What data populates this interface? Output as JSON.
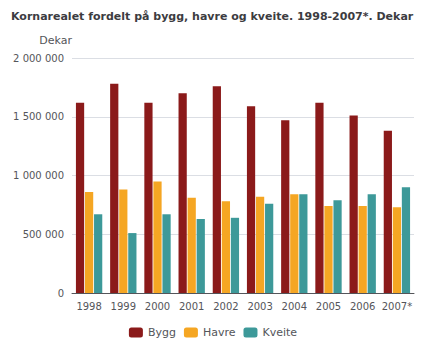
{
  "chart_data": {
    "type": "bar",
    "title": "Kornarealet fordelt på bygg, havre og kveite. 1998-2007*. Dekar",
    "ylabel": "Dekar",
    "categories": [
      "1998",
      "1999",
      "2000",
      "2001",
      "2002",
      "2003",
      "2004",
      "2005",
      "2006",
      "2007*"
    ],
    "series": [
      {
        "name": "Bygg",
        "color": "#8B1A1A",
        "values": [
          1620000,
          1780000,
          1620000,
          1700000,
          1760000,
          1590000,
          1470000,
          1620000,
          1510000,
          1380000
        ]
      },
      {
        "name": "Havre",
        "color": "#F5A623",
        "values": [
          860000,
          880000,
          950000,
          810000,
          780000,
          820000,
          840000,
          740000,
          740000,
          730000
        ]
      },
      {
        "name": "Kveite",
        "color": "#3D9999",
        "values": [
          670000,
          510000,
          670000,
          630000,
          640000,
          760000,
          840000,
          790000,
          840000,
          900000
        ]
      }
    ],
    "ylim": [
      0,
      2000000
    ],
    "yticks": [
      0,
      {
        "value": 500000,
        "label": "500 000"
      },
      {
        "value": 1000000,
        "label": "1 000 000"
      },
      {
        "value": 1500000,
        "label": "1 500 000"
      },
      {
        "value": 2000000,
        "label": "2 000 000"
      }
    ],
    "grid": true,
    "legend": "bottom"
  }
}
